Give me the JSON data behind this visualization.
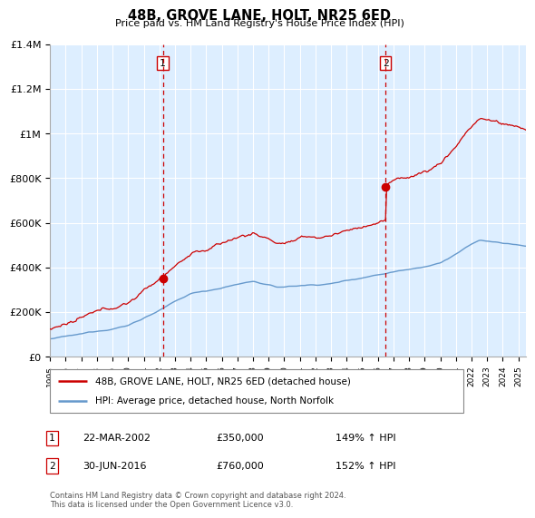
{
  "title": "48B, GROVE LANE, HOLT, NR25 6ED",
  "subtitle": "Price paid vs. HM Land Registry's House Price Index (HPI)",
  "legend_line1": "48B, GROVE LANE, HOLT, NR25 6ED (detached house)",
  "legend_line2": "HPI: Average price, detached house, North Norfolk",
  "annotation1_date": "22-MAR-2002",
  "annotation1_price": "£350,000",
  "annotation1_hpi": "149% ↑ HPI",
  "annotation2_date": "30-JUN-2016",
  "annotation2_price": "£760,000",
  "annotation2_hpi": "152% ↑ HPI",
  "footer": "Contains HM Land Registry data © Crown copyright and database right 2024.\nThis data is licensed under the Open Government Licence v3.0.",
  "red_color": "#cc0000",
  "blue_color": "#6699cc",
  "bg_color": "#ddeeff",
  "ylim": [
    0,
    1400000
  ],
  "yticks": [
    0,
    200000,
    400000,
    600000,
    800000,
    1000000,
    1200000,
    1400000
  ],
  "ytick_labels": [
    "£0",
    "£200K",
    "£400K",
    "£600K",
    "£800K",
    "£1M",
    "£1.2M",
    "£1.4M"
  ],
  "sale1_x": 2002.22,
  "sale1_y": 350000,
  "sale2_x": 2016.5,
  "sale2_y": 760000,
  "xmin": 1995,
  "xmax": 2025.5
}
